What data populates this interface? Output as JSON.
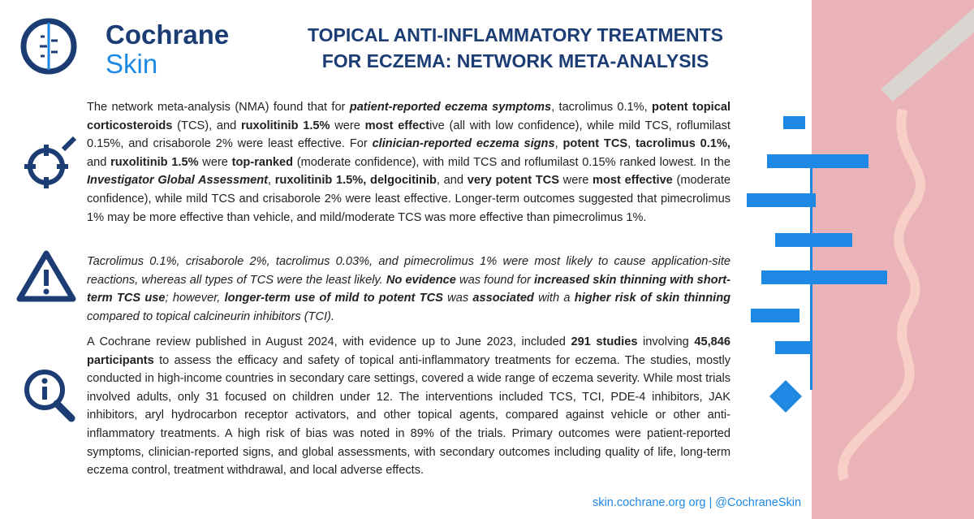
{
  "header": {
    "logo_top": "Cochrane",
    "logo_bottom": "Skin",
    "title_line1": "TOPICAL ANTI-INFLAMMATORY TREATMENTS",
    "title_line2": "FOR ECZEMA: NETWORK META-ANALYSIS"
  },
  "paragraphs": [
    {
      "runs": [
        {
          "t": "The network meta-analysis (NMA) found that for ",
          "s": "n"
        },
        {
          "t": "patient-reported eczema symptoms",
          "s": "bi"
        },
        {
          "t": ", tacrolimus 0.1%, ",
          "s": "n"
        },
        {
          "t": "potent topical corticosteroids",
          "s": "b"
        },
        {
          "t": " (TCS), and ",
          "s": "n"
        },
        {
          "t": "ruxolitinib 1.5%",
          "s": "b"
        },
        {
          "t": " were ",
          "s": "n"
        },
        {
          "t": "most effect",
          "s": "b"
        },
        {
          "t": "ive (all with low confidence), while mild TCS, roflumilast 0.15%, and crisaborole 2% were least effective. For ",
          "s": "n"
        },
        {
          "t": "clinician-reported eczema signs",
          "s": "bi"
        },
        {
          "t": ", ",
          "s": "n"
        },
        {
          "t": "potent TCS",
          "s": "b"
        },
        {
          "t": ", ",
          "s": "n"
        },
        {
          "t": "tacrolimus 0.1%,",
          "s": "b"
        },
        {
          "t": " and ",
          "s": "n"
        },
        {
          "t": "ruxolitinib 1.5%",
          "s": "b"
        },
        {
          "t": " were ",
          "s": "n"
        },
        {
          "t": "top-ranked",
          "s": "b"
        },
        {
          "t": " (moderate confidence), with mild TCS and roflumilast 0.15% ranked lowest. In the ",
          "s": "n"
        },
        {
          "t": "Investigator Global Assessment",
          "s": "bi"
        },
        {
          "t": ", ",
          "s": "n"
        },
        {
          "t": "ruxolitinib 1.5%,",
          "s": "b"
        },
        {
          "t": " ",
          "s": "n"
        },
        {
          "t": "delgocitinib",
          "s": "b"
        },
        {
          "t": ", and ",
          "s": "n"
        },
        {
          "t": "very potent TCS",
          "s": "b"
        },
        {
          "t": " were ",
          "s": "n"
        },
        {
          "t": "most effective",
          "s": "b"
        },
        {
          "t": " (moderate confidence), while mild TCS and crisaborole 2% were least effective. Longer-term outcomes suggested that pimecrolimus 1% may be more effective than vehicle, and mild/moderate TCS was more effective than pimecrolimus 1%.",
          "s": "n"
        }
      ]
    },
    {
      "runs": [
        {
          "t": "Tacrolimus 0.1%, crisaborole 2%, tacrolimus 0.03%, and pimecrolimus 1% were most likely to cause application-site reactions, whereas all types of TCS were the least likely. ",
          "s": "i"
        },
        {
          "t": "No evidence",
          "s": "bi"
        },
        {
          "t": " was found for ",
          "s": "i"
        },
        {
          "t": "increased skin thinning with short-term TCS use",
          "s": "bi"
        },
        {
          "t": "; however, ",
          "s": "i"
        },
        {
          "t": "longer-term use of mild to potent TCS",
          "s": "bi"
        },
        {
          "t": " was ",
          "s": "i"
        },
        {
          "t": "associated",
          "s": "bi"
        },
        {
          "t": " with a ",
          "s": "i"
        },
        {
          "t": "higher risk of skin thinning",
          "s": "bi"
        },
        {
          "t": " compared to topical calcineurin inhibitors (TCI).",
          "s": "i"
        }
      ]
    },
    {
      "runs": [
        {
          "t": "A Cochrane review published in August 2024, with evidence up to June 2023, included ",
          "s": "n"
        },
        {
          "t": "291 studies",
          "s": "b"
        },
        {
          "t": " involving ",
          "s": "n"
        },
        {
          "t": "45,846 participants",
          "s": "b"
        },
        {
          "t": " to assess the efficacy and safety of topical anti-inflammatory treatments for eczema. The studies, mostly conducted in high-income countries in secondary care settings, covered a wide range of eczema severity. While most trials involved adults, only 31 focused on children under 12. The interventions included TCS, TCI, PDE-4 inhibitors, JAK inhibitors, aryl hydrocarbon receptor activators, and other topical agents, compared against vehicle or other anti-inflammatory treatments. A high risk of bias was noted in 89% of the trials. Primary outcomes were patient-reported symptoms, clinician-reported signs, and global assessments, with secondary outcomes including quality of life, long-term eczema control, treatment withdrawal, and local adverse effects.",
          "s": "n"
        }
      ]
    }
  ],
  "footer": "skin.cochrane.org org | @CochraneSkin"
}
